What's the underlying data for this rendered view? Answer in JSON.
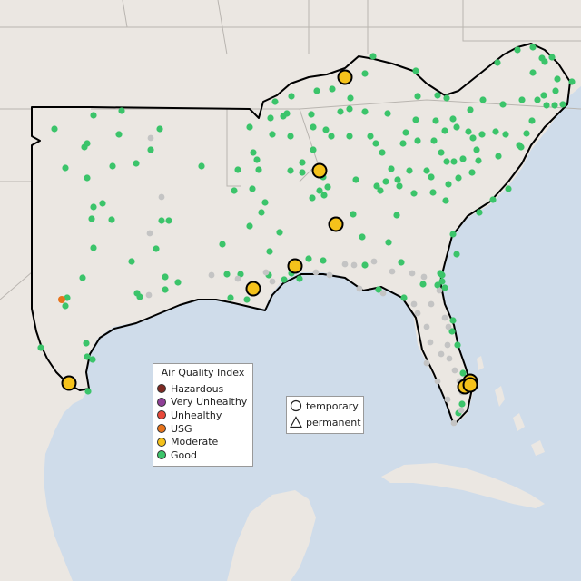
{
  "aqi_legend": {
    "title": "Air Quality Index",
    "items": [
      {
        "label": "Hazardous",
        "color": "#7e2a22"
      },
      {
        "label": "Very Unhealthy",
        "color": "#8f3f97"
      },
      {
        "label": "Unhealthy",
        "color": "#e8483a"
      },
      {
        "label": "USG",
        "color": "#e8731b"
      },
      {
        "label": "Moderate",
        "color": "#f5c21b"
      },
      {
        "label": "Good",
        "color": "#3bc46a"
      }
    ]
  },
  "site_legend": {
    "items": [
      {
        "label": "temporary",
        "icon": "circle-icon"
      },
      {
        "label": "permanent",
        "icon": "triangle-icon"
      }
    ]
  },
  "colors": {
    "water": "#cfdcea",
    "land": "#ebe7e2",
    "boundary": "#000000",
    "no_data": "#c4c4c4"
  }
}
